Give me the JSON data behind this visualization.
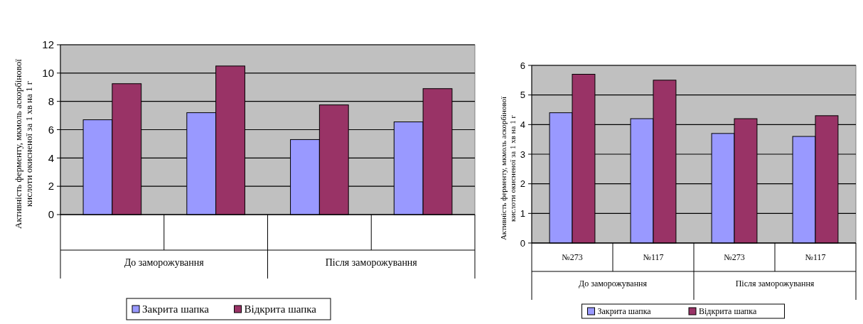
{
  "chart_data": [
    {
      "type": "bar",
      "ylabel": "Активність ферменту, мкмоль аскорбінової кислоти окисненої за 1 хв на 1 г",
      "categories": [
        null,
        null,
        null,
        null
      ],
      "series": [
        {
          "name": "Закрита шапка",
          "color": "#9999ff",
          "values": [
            6.7,
            7.2,
            5.3,
            6.55
          ]
        },
        {
          "name": "Відкрита шапка",
          "color": "#993366",
          "values": [
            9.25,
            10.5,
            7.75,
            8.9
          ]
        }
      ],
      "ylim": [
        0,
        12
      ],
      "yticks": [
        0,
        2,
        4,
        6,
        8,
        10,
        12
      ],
      "grid": "y",
      "legend": "bottom",
      "annotations": [
        "До заморожування",
        "Після заморожування"
      ]
    },
    {
      "type": "bar",
      "ylabel": "Активність ферменту, мкмоль аскорбінової кислоти окисненої за 1 хв на 1 г",
      "categories": [
        "№273",
        "№117",
        "№273",
        "№117"
      ],
      "series": [
        {
          "name": "Закрита шапка",
          "color": "#9999ff",
          "values": [
            4.4,
            4.2,
            3.7,
            3.6
          ]
        },
        {
          "name": "Відкрита шапка",
          "color": "#993366",
          "values": [
            5.7,
            5.5,
            4.2,
            4.3
          ]
        }
      ],
      "ylim": [
        0,
        6
      ],
      "yticks": [
        0,
        1,
        2,
        3,
        4,
        5,
        6
      ],
      "grid": "y",
      "legend": "bottom",
      "annotations": [
        "До заморожування",
        "Після заморожування"
      ]
    }
  ]
}
